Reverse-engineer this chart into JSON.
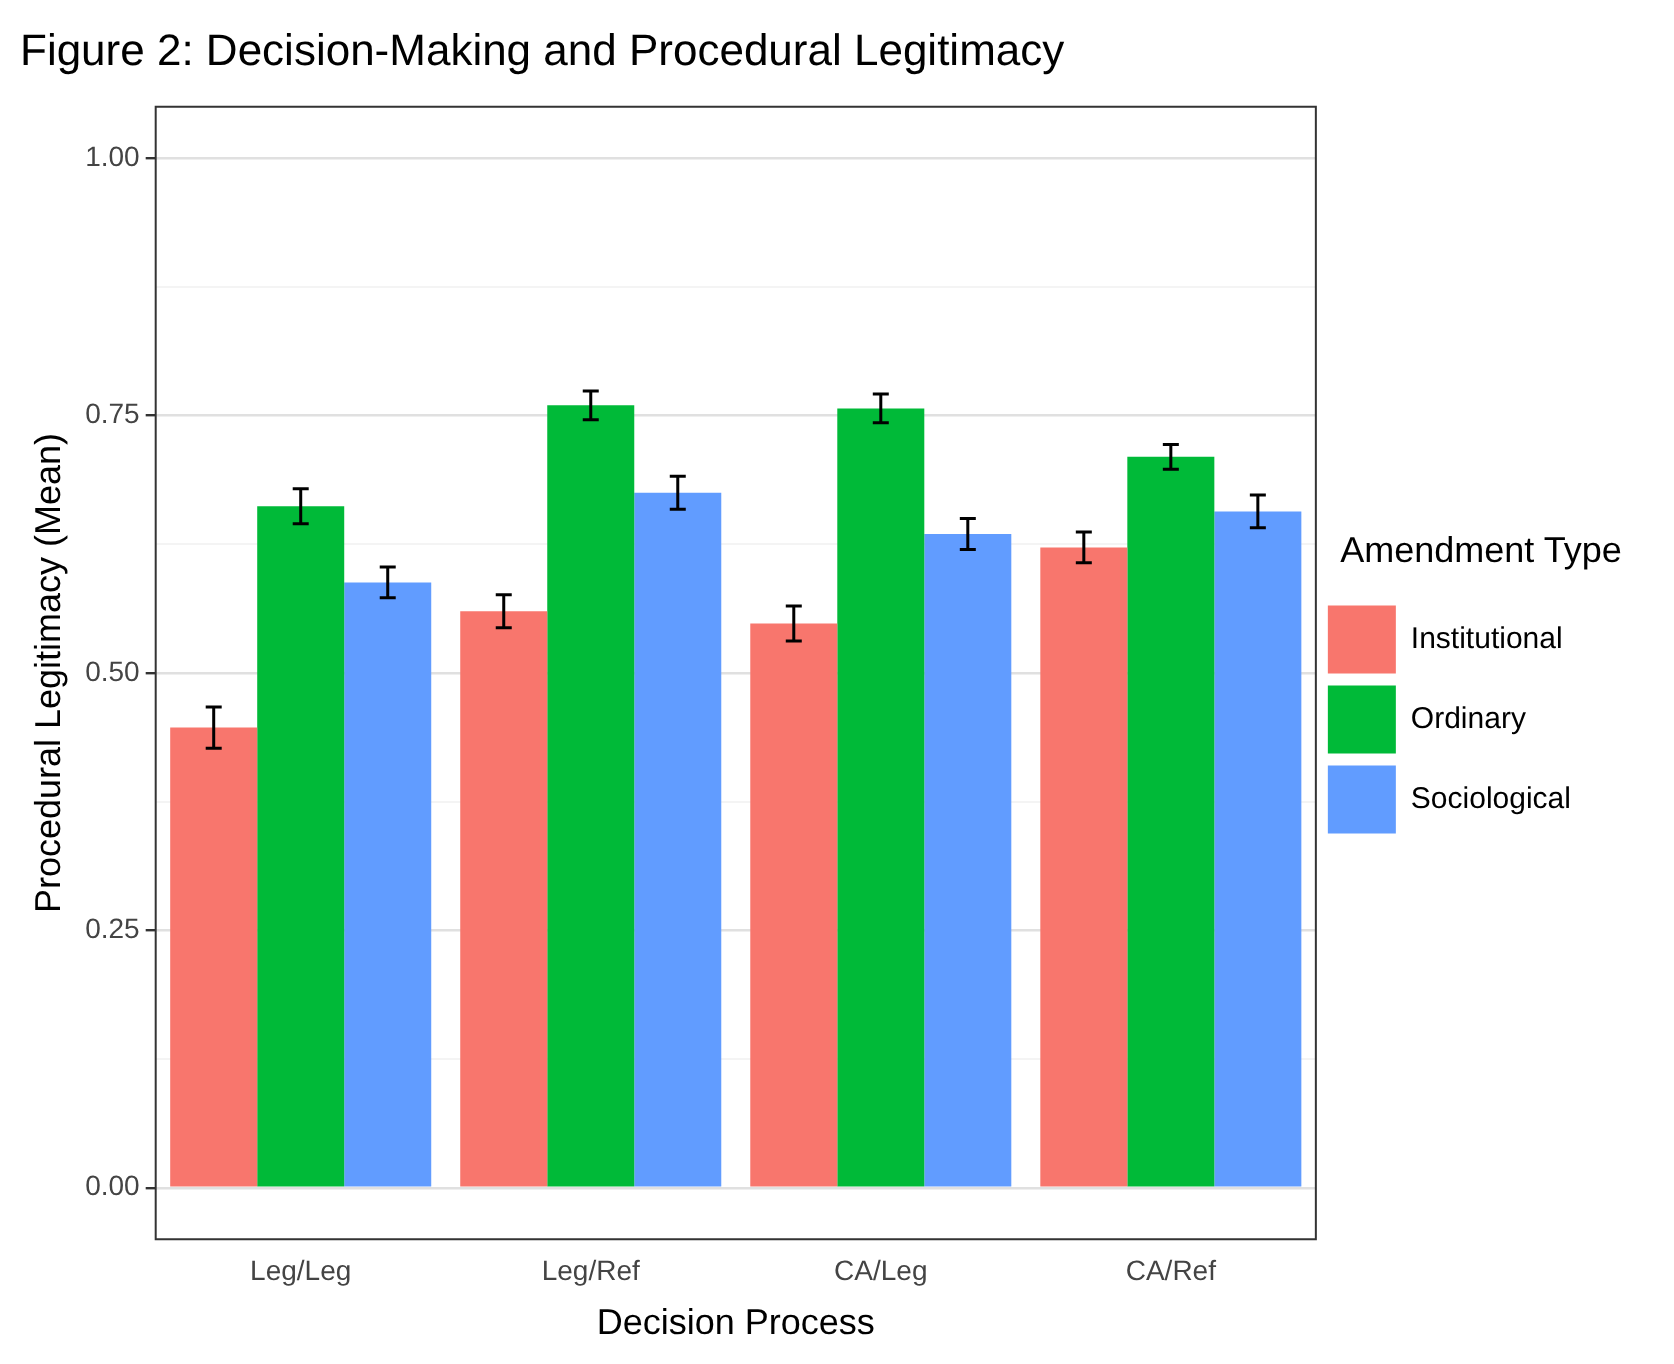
{
  "chart_data": {
    "type": "bar",
    "title": "Figure 2: Decision-Making and Procedural Legitimacy",
    "xlabel": "Decision Process",
    "ylabel": "Procedural Legitimacy (Mean)",
    "legend_title": "Amendment Type",
    "legend": "right",
    "grid": "y",
    "categories": [
      "Leg/Leg",
      "Leg/Ref",
      "CA/Leg",
      "CA/Ref"
    ],
    "ylim": [
      -0.05,
      1.05
    ],
    "yticks": [
      {
        "value": 0,
        "label": "0.00"
      },
      {
        "value": 0.125,
        "label": null
      },
      {
        "value": 0.25,
        "label": "0.25"
      },
      {
        "value": 0.375,
        "label": null
      },
      {
        "value": 0.5,
        "label": "0.50"
      },
      {
        "value": 0.625,
        "label": null
      },
      {
        "value": 0.75,
        "label": "0.75"
      },
      {
        "value": 0.875,
        "label": null
      },
      {
        "value": 1,
        "label": "1.00"
      }
    ],
    "series": [
      {
        "name": "Institutional",
        "color": "#f8766d",
        "values": [
          0.447,
          0.56,
          0.548,
          0.622
        ],
        "errors": [
          0.02,
          0.016,
          0.017,
          0.015
        ]
      },
      {
        "name": "Ordinary",
        "color": "#00ba38",
        "values": [
          0.662,
          0.76,
          0.757,
          0.71
        ],
        "errors": [
          0.017,
          0.014,
          0.014,
          0.012
        ]
      },
      {
        "name": "Sociological",
        "color": "#619cff",
        "values": [
          0.588,
          0.675,
          0.635,
          0.657
        ],
        "errors": [
          0.015,
          0.016,
          0.015,
          0.016
        ]
      }
    ]
  }
}
